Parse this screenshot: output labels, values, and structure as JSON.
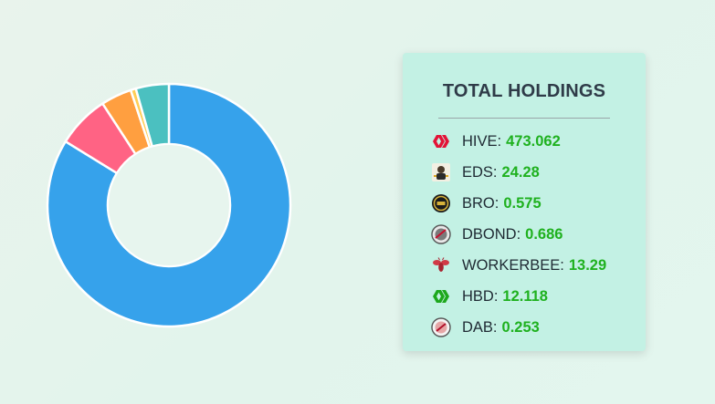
{
  "holdings_panel": {
    "title": "TOTAL HOLDINGS",
    "items": [
      {
        "token": "HIVE",
        "label": "HIVE:",
        "amount": "473.062",
        "icon": "hive-logo-icon",
        "color": "#e31337"
      },
      {
        "token": "EDS",
        "label": "EDS:",
        "amount": "24.28",
        "icon": "eds-token-icon"
      },
      {
        "token": "BRO",
        "label": "BRO:",
        "amount": "0.575",
        "icon": "bro-token-icon"
      },
      {
        "token": "DBOND",
        "label": "DBOND:",
        "amount": "0.686",
        "icon": "dbond-token-icon"
      },
      {
        "token": "WORKERBEE",
        "label": "WORKERBEE:",
        "amount": "13.29",
        "icon": "workerbee-token-icon",
        "color": "#d03a46"
      },
      {
        "token": "HBD",
        "label": "HBD:",
        "amount": "12.118",
        "icon": "hbd-logo-icon",
        "color": "#1da81d"
      },
      {
        "token": "DAB",
        "label": "DAB:",
        "amount": "0.253",
        "icon": "dab-token-icon"
      }
    ],
    "amount_color": "#1fb11f"
  },
  "chart_data": {
    "type": "pie",
    "donut": true,
    "start_angle_deg": 0,
    "slices": [
      {
        "value": 83.8,
        "color": "#36a2eb"
      },
      {
        "value": 7.0,
        "color": "#ff6384"
      },
      {
        "value": 4.1,
        "color": "#ff9f40"
      },
      {
        "value": 0.7,
        "color": "#ffcd56"
      },
      {
        "value": 4.4,
        "color": "#4bc0c0"
      }
    ]
  }
}
